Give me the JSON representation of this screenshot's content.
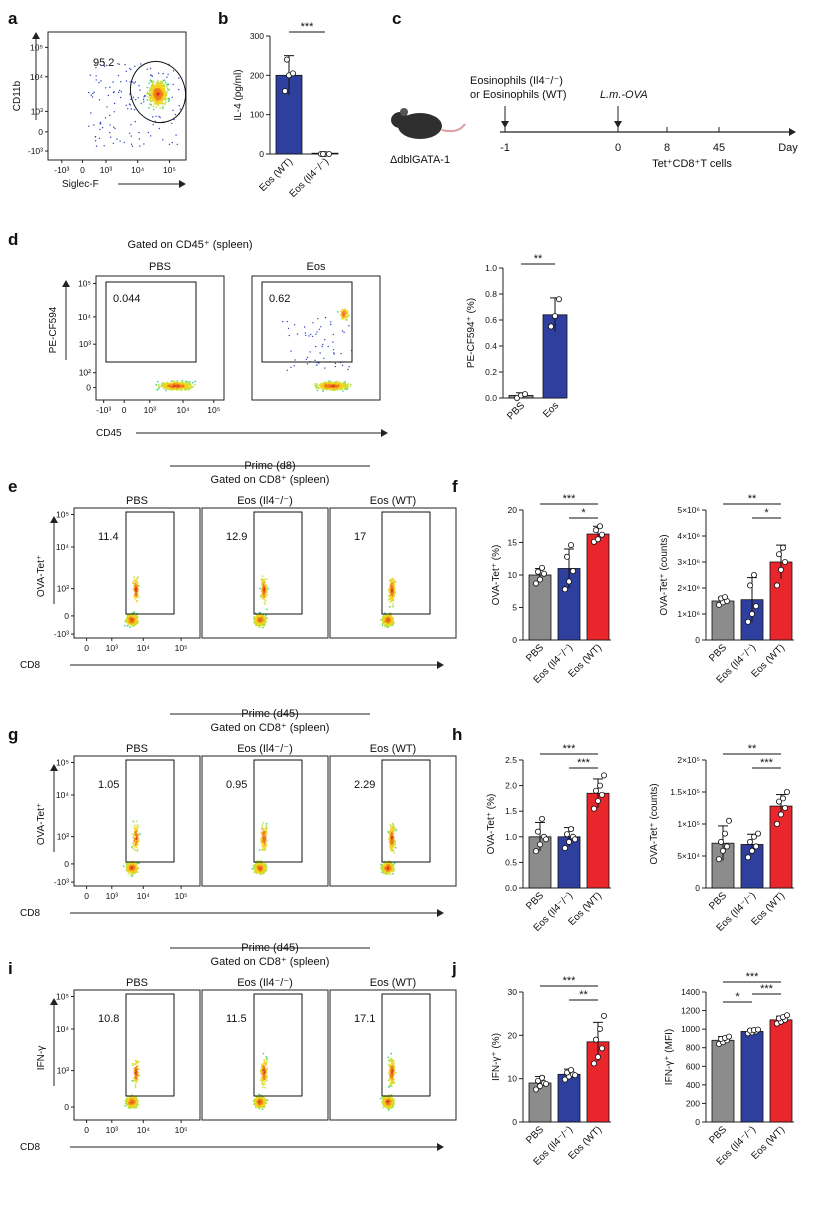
{
  "figure": {
    "panel_letters": [
      "a",
      "b",
      "c",
      "d",
      "e",
      "f",
      "g",
      "h",
      "i",
      "j"
    ],
    "colors": {
      "grey": "#8c8c8c",
      "blue": "#2e3f9e",
      "red": "#e8262b",
      "axis": "#222222"
    }
  },
  "panel_a": {
    "xlabel": "Siglec-F",
    "ylabel": "CD11b",
    "gate_value": "95.2",
    "xticks": [
      "-10³",
      "0",
      "10³",
      "10⁴",
      "10⁵"
    ],
    "yticks": [
      "10⁵",
      "10⁴",
      "10³",
      "0",
      "-10³"
    ]
  },
  "panel_c": {
    "treatment_line1": "Eosinophils (Il4⁻/⁻)",
    "treatment_line2": "or Eosinophils (WT)",
    "infection_label": "L.m.-OVA",
    "mouse_label": "ΔdblGATA-1",
    "timepoints": [
      "-1",
      "0",
      "8",
      "45"
    ],
    "axis_unit": "Day",
    "readout": "Tet⁺CD8⁺T cells"
  },
  "panel_d": {
    "gate_title": "Gated on CD45⁺ (spleen)",
    "xlabel": "CD45",
    "ylabel": "PE-CF594",
    "plots": [
      {
        "title": "PBS",
        "value": "0.044"
      },
      {
        "title": "Eos",
        "value": "0.62"
      }
    ],
    "xticks": [
      "-10³",
      "0",
      "10³",
      "10⁴",
      "10⁵"
    ],
    "yticks": [
      "10⁵",
      "10⁴",
      "10³",
      "10²",
      "0"
    ]
  },
  "flow_e": {
    "bracket_title": "Prime (d8)",
    "gate_title": "Gated on CD8⁺ (spleen)",
    "xlabel": "CD8",
    "ylabel": "OVA-Tet⁺",
    "plots": [
      {
        "title": "PBS",
        "value": "11.4"
      },
      {
        "title": "Eos (Il4⁻/⁻)",
        "value": "12.9"
      },
      {
        "title": "Eos (WT)",
        "value": "17"
      }
    ],
    "xticks": [
      "0",
      "10³",
      "10⁴",
      "10⁵"
    ],
    "yticks": [
      "10⁵",
      "10⁴",
      "10³",
      "0",
      "-10³"
    ]
  },
  "flow_g": {
    "bracket_title": "Prime (d45)",
    "gate_title": "Gated on CD8⁺ (spleen)",
    "xlabel": "CD8",
    "ylabel": "OVA-Tet⁺",
    "plots": [
      {
        "title": "PBS",
        "value": "1.05"
      },
      {
        "title": "Eos (Il4⁻/⁻)",
        "value": "0.95"
      },
      {
        "title": "Eos (WT)",
        "value": "2.29"
      }
    ],
    "xticks": [
      "0",
      "10³",
      "10⁴",
      "10⁵"
    ],
    "yticks": [
      "10⁵",
      "10⁴",
      "10³",
      "0",
      "-10³"
    ]
  },
  "flow_i": {
    "bracket_title": "Prime (d45)",
    "gate_title": "Gated on CD8⁺ (spleen)",
    "xlabel": "CD8",
    "ylabel": "IFN-γ",
    "plots": [
      {
        "title": "PBS",
        "value": "10.8"
      },
      {
        "title": "Eos (Il4⁻/⁻)",
        "value": "11.5"
      },
      {
        "title": "Eos (WT)",
        "value": "17.1"
      }
    ],
    "xticks": [
      "0",
      "10³",
      "10⁴",
      "10⁵"
    ],
    "yticks": [
      "10⁵",
      "10⁴",
      "10³",
      "0"
    ]
  },
  "chart_data": [
    {
      "id": "b",
      "type": "bar",
      "ylabel": "IL-4 (pg/ml)",
      "categories": [
        "Eos (WT)",
        "Eos (Il4⁻/⁻)"
      ],
      "colors": [
        "blue",
        "blue"
      ],
      "values": [
        200,
        2
      ],
      "errors": [
        50,
        2
      ],
      "points": [
        [
          160,
          200,
          205,
          240
        ],
        [
          0,
          0,
          0,
          0
        ]
      ],
      "ylim": [
        0,
        300
      ],
      "yticks": [
        0,
        100,
        200,
        300
      ],
      "ytick_labels": [
        "0",
        "100",
        "200",
        "300"
      ],
      "significance": [
        {
          "pair": [
            0,
            1
          ],
          "label": "***"
        }
      ]
    },
    {
      "id": "d",
      "type": "bar",
      "ylabel": "PE-CF594⁺ (%)",
      "categories": [
        "PBS",
        "Eos"
      ],
      "colors": [
        "grey",
        "blue"
      ],
      "values": [
        0.02,
        0.64
      ],
      "errors": [
        0.02,
        0.13
      ],
      "points": [
        [
          0.0,
          0.02,
          0.03
        ],
        [
          0.55,
          0.63,
          0.76
        ]
      ],
      "ylim": [
        0,
        1.0
      ],
      "yticks": [
        0,
        0.2,
        0.4,
        0.6,
        0.8,
        1.0
      ],
      "ytick_labels": [
        "0.0",
        "0.2",
        "0.4",
        "0.6",
        "0.8",
        "1.0"
      ],
      "significance": [
        {
          "pair": [
            0,
            1
          ],
          "label": "**"
        }
      ]
    },
    {
      "id": "f1",
      "type": "bar",
      "ylabel": "OVA-Tet⁺ (%)",
      "categories": [
        "PBS",
        "Eos (Il4⁻/⁻)",
        "Eos (WT)"
      ],
      "colors": [
        "grey",
        "blue",
        "red"
      ],
      "values": [
        10.0,
        11.0,
        16.3
      ],
      "errors": [
        1.0,
        3.0,
        1.2
      ],
      "points": [
        [
          8.7,
          9.3,
          10.2,
          10.5,
          11.1
        ],
        [
          7.8,
          9.0,
          10.6,
          12.8,
          14.6
        ],
        [
          15.1,
          15.5,
          16.2,
          16.9,
          17.5
        ]
      ],
      "ylim": [
        0,
        20
      ],
      "yticks": [
        0,
        5,
        10,
        15,
        20
      ],
      "ytick_labels": [
        "0",
        "5",
        "10",
        "15",
        "20"
      ],
      "significance": [
        {
          "pair": [
            0,
            2
          ],
          "label": "***"
        },
        {
          "pair": [
            1,
            2
          ],
          "label": "*"
        }
      ]
    },
    {
      "id": "f2",
      "type": "bar",
      "ylabel": "OVA-Tet⁺ (counts)",
      "categories": [
        "PBS",
        "Eos (Il4⁻/⁻)",
        "Eos (WT)"
      ],
      "colors": [
        "grey",
        "blue",
        "red"
      ],
      "values": [
        1500000,
        1550000,
        3000000
      ],
      "errors": [
        150000,
        850000,
        650000
      ],
      "points": [
        [
          1350000,
          1450000,
          1500000,
          1600000,
          1650000
        ],
        [
          700000,
          1000000,
          1300000,
          2100000,
          2500000
        ],
        [
          2100000,
          2700000,
          3000000,
          3300000,
          3550000
        ]
      ],
      "ylim": [
        0,
        5000000
      ],
      "yticks": [
        0,
        1000000,
        2000000,
        3000000,
        4000000,
        5000000
      ],
      "ytick_labels": [
        "0",
        "1×10⁶",
        "2×10⁶",
        "3×10⁶",
        "4×10⁶",
        "5×10⁶"
      ],
      "significance": [
        {
          "pair": [
            0,
            2
          ],
          "label": "**"
        },
        {
          "pair": [
            1,
            2
          ],
          "label": "*"
        }
      ]
    },
    {
      "id": "h1",
      "type": "bar",
      "ylabel": "OVA-Tet⁺ (%)",
      "categories": [
        "PBS",
        "Eos (Il4⁻/⁻)",
        "Eos (WT)"
      ],
      "colors": [
        "grey",
        "blue",
        "red"
      ],
      "values": [
        1.0,
        1.0,
        1.85
      ],
      "errors": [
        0.28,
        0.18,
        0.28
      ],
      "points": [
        [
          0.72,
          0.85,
          1.0,
          1.1,
          1.35,
          0.95
        ],
        [
          0.78,
          0.9,
          1.0,
          1.05,
          1.15,
          0.95
        ],
        [
          1.55,
          1.7,
          1.82,
          1.9,
          2.0,
          2.2
        ]
      ],
      "ylim": [
        0,
        2.5
      ],
      "yticks": [
        0,
        0.5,
        1.0,
        1.5,
        2.0,
        2.5
      ],
      "ytick_labels": [
        "0.0",
        "0.5",
        "1.0",
        "1.5",
        "2.0",
        "2.5"
      ],
      "significance": [
        {
          "pair": [
            0,
            2
          ],
          "label": "***"
        },
        {
          "pair": [
            1,
            2
          ],
          "label": "***"
        }
      ]
    },
    {
      "id": "h2",
      "type": "bar",
      "ylabel": "OVA-Tet⁺ (counts)",
      "categories": [
        "PBS",
        "Eos (Il4⁻/⁻)",
        "Eos (WT)"
      ],
      "colors": [
        "grey",
        "blue",
        "red"
      ],
      "values": [
        70000,
        68000,
        128000
      ],
      "errors": [
        27000,
        16000,
        18000
      ],
      "points": [
        [
          45000,
          58000,
          65000,
          72000,
          85000,
          105000
        ],
        [
          48000,
          58000,
          65000,
          72000,
          80000,
          85000
        ],
        [
          100000,
          115000,
          125000,
          135000,
          140000,
          150000
        ]
      ],
      "ylim": [
        0,
        200000
      ],
      "yticks": [
        0,
        50000,
        100000,
        150000,
        200000
      ],
      "ytick_labels": [
        "0",
        "5×10⁴",
        "1×10⁵",
        "1.5×10⁵",
        "2×10⁵"
      ],
      "significance": [
        {
          "pair": [
            0,
            2
          ],
          "label": "**"
        },
        {
          "pair": [
            1,
            2
          ],
          "label": "***"
        }
      ]
    },
    {
      "id": "j1",
      "type": "bar",
      "ylabel": "IFN-γ⁺ (%)",
      "categories": [
        "PBS",
        "Eos (Il4⁻/⁻)",
        "Eos (WT)"
      ],
      "colors": [
        "grey",
        "blue",
        "red"
      ],
      "values": [
        9.0,
        11.0,
        18.5
      ],
      "errors": [
        1.5,
        1.2,
        4.5
      ],
      "points": [
        [
          7.5,
          8.3,
          9.0,
          9.5,
          10.2,
          8.8
        ],
        [
          9.8,
          10.5,
          11.0,
          11.4,
          12.0,
          10.8
        ],
        [
          13.5,
          15.0,
          17.0,
          19.0,
          21.5,
          24.5
        ]
      ],
      "ylim": [
        0,
        30
      ],
      "yticks": [
        0,
        10,
        20,
        30
      ],
      "ytick_labels": [
        "0",
        "10",
        "20",
        "30"
      ],
      "significance": [
        {
          "pair": [
            0,
            2
          ],
          "label": "***"
        },
        {
          "pair": [
            1,
            2
          ],
          "label": "**"
        }
      ]
    },
    {
      "id": "j2",
      "type": "bar",
      "ylabel": "IFN-γ⁺ (MFI)",
      "categories": [
        "PBS",
        "Eos (Il4⁻/⁻)",
        "Eos (WT)"
      ],
      "colors": [
        "grey",
        "blue",
        "red"
      ],
      "values": [
        880,
        975,
        1100
      ],
      "errors": [
        40,
        20,
        40
      ],
      "points": [
        [
          840,
          860,
          880,
          895,
          905,
          920
        ],
        [
          955,
          965,
          975,
          985,
          990,
          995
        ],
        [
          1060,
          1080,
          1100,
          1115,
          1130,
          1150
        ]
      ],
      "ylim": [
        0,
        1400
      ],
      "yticks": [
        0,
        200,
        400,
        600,
        800,
        1000,
        1200,
        1400
      ],
      "ytick_labels": [
        "0",
        "200",
        "400",
        "600",
        "800",
        "1000",
        "1200",
        "1400"
      ],
      "significance": [
        {
          "pair": [
            0,
            1
          ],
          "label": "*"
        },
        {
          "pair": [
            1,
            2
          ],
          "label": "***"
        },
        {
          "pair": [
            0,
            2
          ],
          "label": "***"
        }
      ]
    }
  ]
}
